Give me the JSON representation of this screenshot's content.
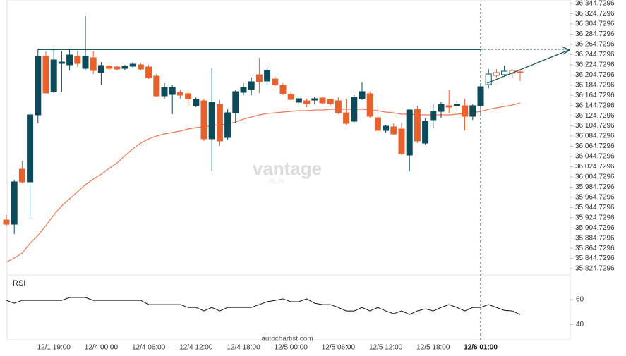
{
  "chart_data": [
    {
      "type": "candlestick",
      "categories": [
        null,
        null,
        null,
        null,
        null,
        null,
        "12/1 19:00",
        null,
        null,
        null,
        null,
        null,
        "12/4 00:00",
        null,
        null,
        null,
        null,
        null,
        "12/4 06:00",
        null,
        null,
        null,
        null,
        null,
        "12/4 12:00",
        null,
        null,
        null,
        null,
        null,
        "12/4 18:00",
        null,
        null,
        null,
        null,
        null,
        "12/5 00:00",
        null,
        null,
        null,
        null,
        null,
        "12/5 06:00",
        null,
        null,
        null,
        null,
        null,
        "12/5 12:00",
        null,
        null,
        null,
        null,
        null,
        "12/5 18:00",
        null,
        null,
        null,
        null,
        null,
        "12/6 01:00",
        null,
        null,
        null,
        null,
        null
      ],
      "open": [
        35920.2,
        35911.9,
        36019.8,
        35994.9,
        36126.3,
        36241.1,
        36171.9,
        36227.2,
        36224.5,
        36241.1,
        36217.5,
        36238.3,
        36209.3,
        36221.7,
        36220.3,
        36217.5,
        36221.7,
        36224.5,
        36220.3,
        36202.3,
        36163.6,
        36166.4,
        36170.5,
        36167.8,
        36144.3,
        36153.9,
        36079.3,
        36147.0,
        36082.0,
        36130.4,
        36170.5,
        36176.1,
        36205.1,
        36192.7,
        36196.8,
        36184.4,
        36166.4,
        36151.2,
        36153.9,
        36155.3,
        36159.5,
        36156.7,
        36153.9,
        36130.4,
        36113.8,
        36158.1,
        36167.8,
        36120.7,
        36095.8,
        36102.8,
        36098.6,
        36047.4,
        36137.3,
        36071.0,
        36116.6,
        36133.2,
        36144.3,
        36144.3,
        36144.3,
        36123.5,
        36144.3,
        36185.7,
        36209.3,
        36205.1,
        36213.4,
        36210.6
      ],
      "high": [
        35929.9,
        35999.1,
        36036.4,
        36130.4,
        36254.9,
        36250.7,
        36254.9,
        36252.1,
        36254.9,
        36252.1,
        36321.3,
        36252.1,
        36230.0,
        36224.5,
        36223.1,
        36224.5,
        36230.0,
        36227.2,
        36224.5,
        36206.5,
        36188.5,
        36185.7,
        36174.7,
        36171.9,
        36160.8,
        36158.1,
        36217.5,
        36155.3,
        36137.3,
        36174.7,
        36188.5,
        36199.6,
        36238.3,
        36220.3,
        36202.3,
        36188.5,
        36171.9,
        36162.2,
        36158.1,
        36162.2,
        36162.2,
        36158.1,
        36160.8,
        36158.1,
        36165.0,
        36189.9,
        36171.9,
        36144.3,
        36106.9,
        36109.7,
        36109.7,
        36137.3,
        36144.3,
        36119.4,
        36147.0,
        36151.2,
        36174.7,
        36153.9,
        36158.1,
        36147.0,
        36188.5,
        36216.2,
        36216.2,
        36223.1,
        36216.2,
        36216.2
      ],
      "low": [
        35909.1,
        35892.5,
        35992.1,
        35923.0,
        36109.7,
        36169.1,
        36169.1,
        36171.9,
        36213.4,
        36220.3,
        36213.4,
        36206.5,
        36185.7,
        36213.4,
        36213.4,
        36213.4,
        36218.9,
        36213.4,
        36196.8,
        36160.8,
        36158.1,
        36127.7,
        36158.1,
        36144.3,
        36141.5,
        36075.1,
        36015.6,
        36065.4,
        36077.9,
        36109.7,
        36165.0,
        36165.0,
        36169.1,
        36185.7,
        36183.0,
        36165.0,
        36155.3,
        36141.5,
        36141.5,
        36147.0,
        36147.0,
        36144.3,
        36127.7,
        36106.9,
        36109.7,
        36155.3,
        36119.4,
        36095.8,
        36091.7,
        36086.2,
        36047.4,
        36015.6,
        36071.0,
        36068.2,
        36100.0,
        36119.4,
        36130.4,
        36133.2,
        36095.8,
        36116.6,
        36123.5,
        36178.8,
        36199.6,
        36202.3,
        36199.6,
        36192.7
      ],
      "close": [
        35911.9,
        35994.9,
        35994.9,
        36126.3,
        36241.1,
        36169.1,
        36234.2,
        36230.0,
        36243.8,
        36227.2,
        36241.1,
        36213.4,
        36223.1,
        36217.5,
        36216.2,
        36221.7,
        36225.8,
        36216.2,
        36199.6,
        36163.6,
        36180.2,
        36180.2,
        36165.0,
        36158.1,
        36156.7,
        36079.3,
        36151.2,
        36075.1,
        36130.4,
        36171.9,
        36180.2,
        36191.3,
        36191.3,
        36213.4,
        36185.7,
        36167.8,
        36156.7,
        36158.1,
        36148.4,
        36158.1,
        36149.8,
        36148.4,
        36130.4,
        36109.7,
        36160.8,
        36171.9,
        36123.5,
        36095.8,
        36104.2,
        36088.9,
        36050.2,
        36135.9,
        36075.1,
        36113.8,
        36133.2,
        36147.0,
        36141.5,
        36147.0,
        36123.5,
        36144.3,
        36181.6,
        36206.5,
        36203.7,
        36212.0,
        36207.9,
        36209.3
      ],
      "moving_average": {
        "color": "#f07850",
        "values": [
          35837.2,
          35845.5,
          35855.2,
          35874.6,
          35889.8,
          35909.1,
          35929.9,
          35947.9,
          35961.7,
          35975.5,
          35989.4,
          36000.4,
          36010.1,
          36021.2,
          36032.2,
          36046.1,
          36059.9,
          36070.9,
          36079.3,
          36084.8,
          36088.9,
          36091.7,
          36094.5,
          36098.6,
          36101.4,
          36102.8,
          36105.5,
          36106.9,
          36108.3,
          36112.4,
          36118.0,
          36122.1,
          36126.3,
          36129.0,
          36130.4,
          36131.8,
          36133.2,
          36134.6,
          36134.6,
          36135.9,
          36135.9,
          36137.3,
          36137.3,
          36137.3,
          36137.3,
          36137.3,
          36135.9,
          36134.6,
          36131.8,
          36130.4,
          36127.7,
          36127.7,
          36126.3,
          36126.3,
          36126.3,
          36126.3,
          36126.3,
          36127.7,
          36129.0,
          36130.4,
          36133.2,
          36137.3,
          36140.1,
          36142.9,
          36145.6,
          36149.8
        ]
      },
      "up_color": "#0d4a5a",
      "down_color": "#e8602c",
      "resistance": 36254.9,
      "resistance_color": "#1e5560",
      "ylim": [
        35815.1,
        36351.7
      ],
      "yticks": [
        {
          "value": 36344.7296,
          "label": "36,344.7296"
        },
        {
          "value": 36324.7296,
          "label": "36,324.7296"
        },
        {
          "value": 36304.7296,
          "label": "36,304.7296"
        },
        {
          "value": 36284.7296,
          "label": "36,284.7296"
        },
        {
          "value": 36264.7296,
          "label": "36,264.7296"
        },
        {
          "value": 36244.7296,
          "label": "36,244.7296"
        },
        {
          "value": 36224.7296,
          "label": "36,224.7296"
        },
        {
          "value": 36204.7296,
          "label": "36,204.7296"
        },
        {
          "value": 36184.7296,
          "label": "36,184.7296"
        },
        {
          "value": 36164.7296,
          "label": "36,164.7296"
        },
        {
          "value": 36144.7296,
          "label": "36,144.7296"
        },
        {
          "value": 36124.7296,
          "label": "36,124.7296"
        },
        {
          "value": 36104.7296,
          "label": "36,104.7296"
        },
        {
          "value": 36084.7296,
          "label": "36,084.7296"
        },
        {
          "value": 36064.7296,
          "label": "36,064.7296"
        },
        {
          "value": 36044.7296,
          "label": "36,044.7296"
        },
        {
          "value": 36024.7296,
          "label": "36,024.7296"
        },
        {
          "value": 36004.7296,
          "label": "36,004.7296"
        },
        {
          "value": 35984.7296,
          "label": "35,984.7296"
        },
        {
          "value": 35964.7296,
          "label": "35,964.7296"
        },
        {
          "value": 35944.7296,
          "label": "35,944.7296"
        },
        {
          "value": 35924.7296,
          "label": "35,924.7296"
        },
        {
          "value": 35904.7296,
          "label": "35,904.7296"
        },
        {
          "value": 35884.7296,
          "label": "35,884.7296"
        },
        {
          "value": 35864.7296,
          "label": "35,864.7296"
        },
        {
          "value": 35844.7296,
          "label": "35,844.7296"
        },
        {
          "value": 35824.7296,
          "label": "35,824.7296"
        }
      ],
      "watermark": "vantage",
      "watermark_sub": "PLUS",
      "source": "autochartist.com"
    },
    {
      "type": "line",
      "title": "RSI",
      "color": "#111111",
      "values": [
        59.4,
        57.1,
        59.4,
        59.4,
        59.4,
        59.4,
        59.4,
        59.4,
        61.7,
        61.7,
        61.7,
        59.4,
        59.4,
        59.4,
        59.4,
        59.4,
        59.4,
        59.4,
        56.0,
        56.0,
        56.0,
        56.0,
        56.0,
        53.7,
        53.7,
        50.9,
        53.7,
        50.9,
        53.7,
        53.7,
        53.7,
        53.7,
        56.0,
        58.3,
        59.4,
        60.6,
        58.3,
        58.3,
        60.6,
        57.1,
        56.0,
        56.0,
        53.7,
        50.9,
        50.9,
        53.7,
        50.9,
        53.7,
        50.9,
        48.6,
        50.9,
        48.0,
        50.9,
        52.6,
        50.9,
        53.7,
        56.0,
        53.7,
        50.9,
        53.7,
        53.7,
        56.0,
        53.7,
        51.4,
        50.9,
        48.0
      ],
      "ylim": [
        30,
        77
      ],
      "yticks": [
        40,
        60
      ]
    }
  ]
}
